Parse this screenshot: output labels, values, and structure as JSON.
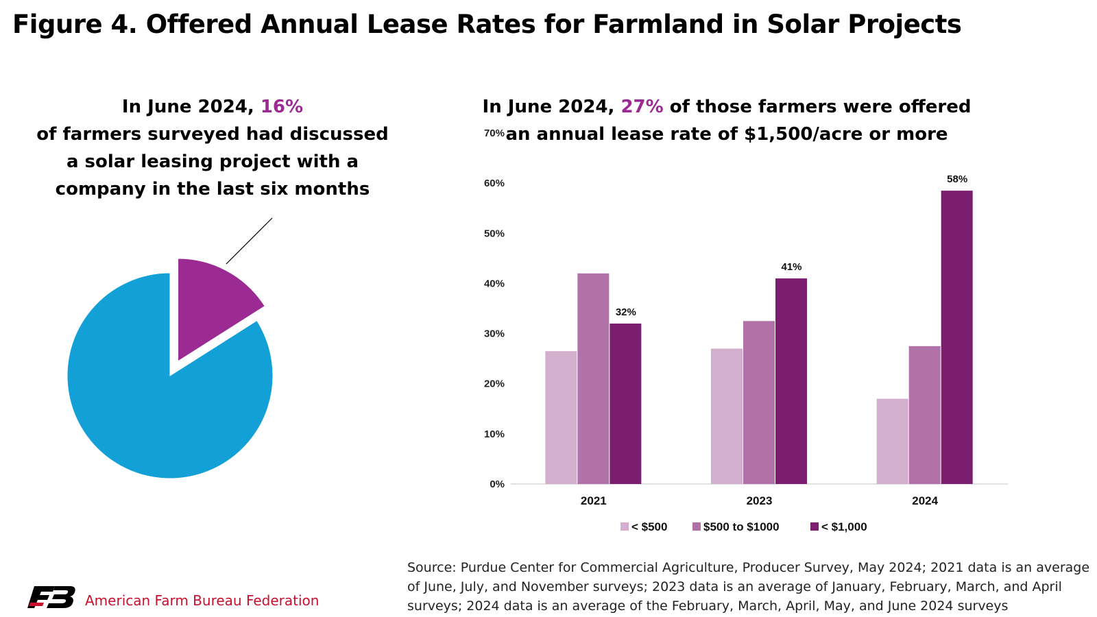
{
  "title": "Figure 4. Offered Annual Lease Rates for Farmland in Solar Projects",
  "pie_caption": {
    "line1_prefix": "In June 2024, ",
    "highlight": "16%",
    "rest": "of farmers surveyed had discussed a solar leasing project with a company in the last six months"
  },
  "bar_caption": {
    "line1_prefix": "In June 2024, ",
    "highlight": "27%",
    "rest": " of those farmers were offered an annual lease rate of $1,500/acre or more"
  },
  "source": "Source: Purdue Center for Commercial Agriculture, Producer Survey, May 2024; 2021 data is an average of June, July, and November surveys; 2023 data is an average of January, February, March, and April surveys; 2024 data is an average of the February, March, April, May, and June 2024 surveys",
  "footer": {
    "organization": "American Farm Bureau Federation",
    "logo_text": "FB"
  },
  "colors": {
    "highlight": "#9c2a93",
    "pie_main": "#12a0d7",
    "pie_slice": "#9c2a93",
    "series": [
      "#d2b0cd",
      "#b172aa",
      "#7b1e6f"
    ]
  },
  "chart_data": [
    {
      "type": "pie",
      "values": [
        84,
        16
      ],
      "colors": [
        "#12a0d7",
        "#9c2a93"
      ],
      "exploded": [
        false,
        true
      ]
    },
    {
      "type": "bar",
      "categories": [
        "2021",
        "2023",
        "2024"
      ],
      "series": [
        {
          "name": "< $500",
          "values": [
            26.5,
            27,
            17
          ]
        },
        {
          "name": "$500 to $1000",
          "values": [
            42,
            32.5,
            27.5
          ]
        },
        {
          "name": "< $1,000",
          "values": [
            32,
            41,
            58.5
          ]
        }
      ],
      "data_labels": [
        {
          "category": "2021",
          "series": "< $1,000",
          "text": "32%"
        },
        {
          "category": "2023",
          "series": "< $1,000",
          "text": "41%"
        },
        {
          "category": "2024",
          "series": "< $1,000",
          "text": "58%"
        }
      ],
      "ylim": [
        0,
        70
      ],
      "yticks": [
        0,
        10,
        20,
        30,
        40,
        50,
        60,
        70
      ],
      "ytick_labels": [
        "0%",
        "10%",
        "20%",
        "30%",
        "40%",
        "50%",
        "60%",
        "70%"
      ],
      "grid": false,
      "legend": "bottom"
    }
  ]
}
